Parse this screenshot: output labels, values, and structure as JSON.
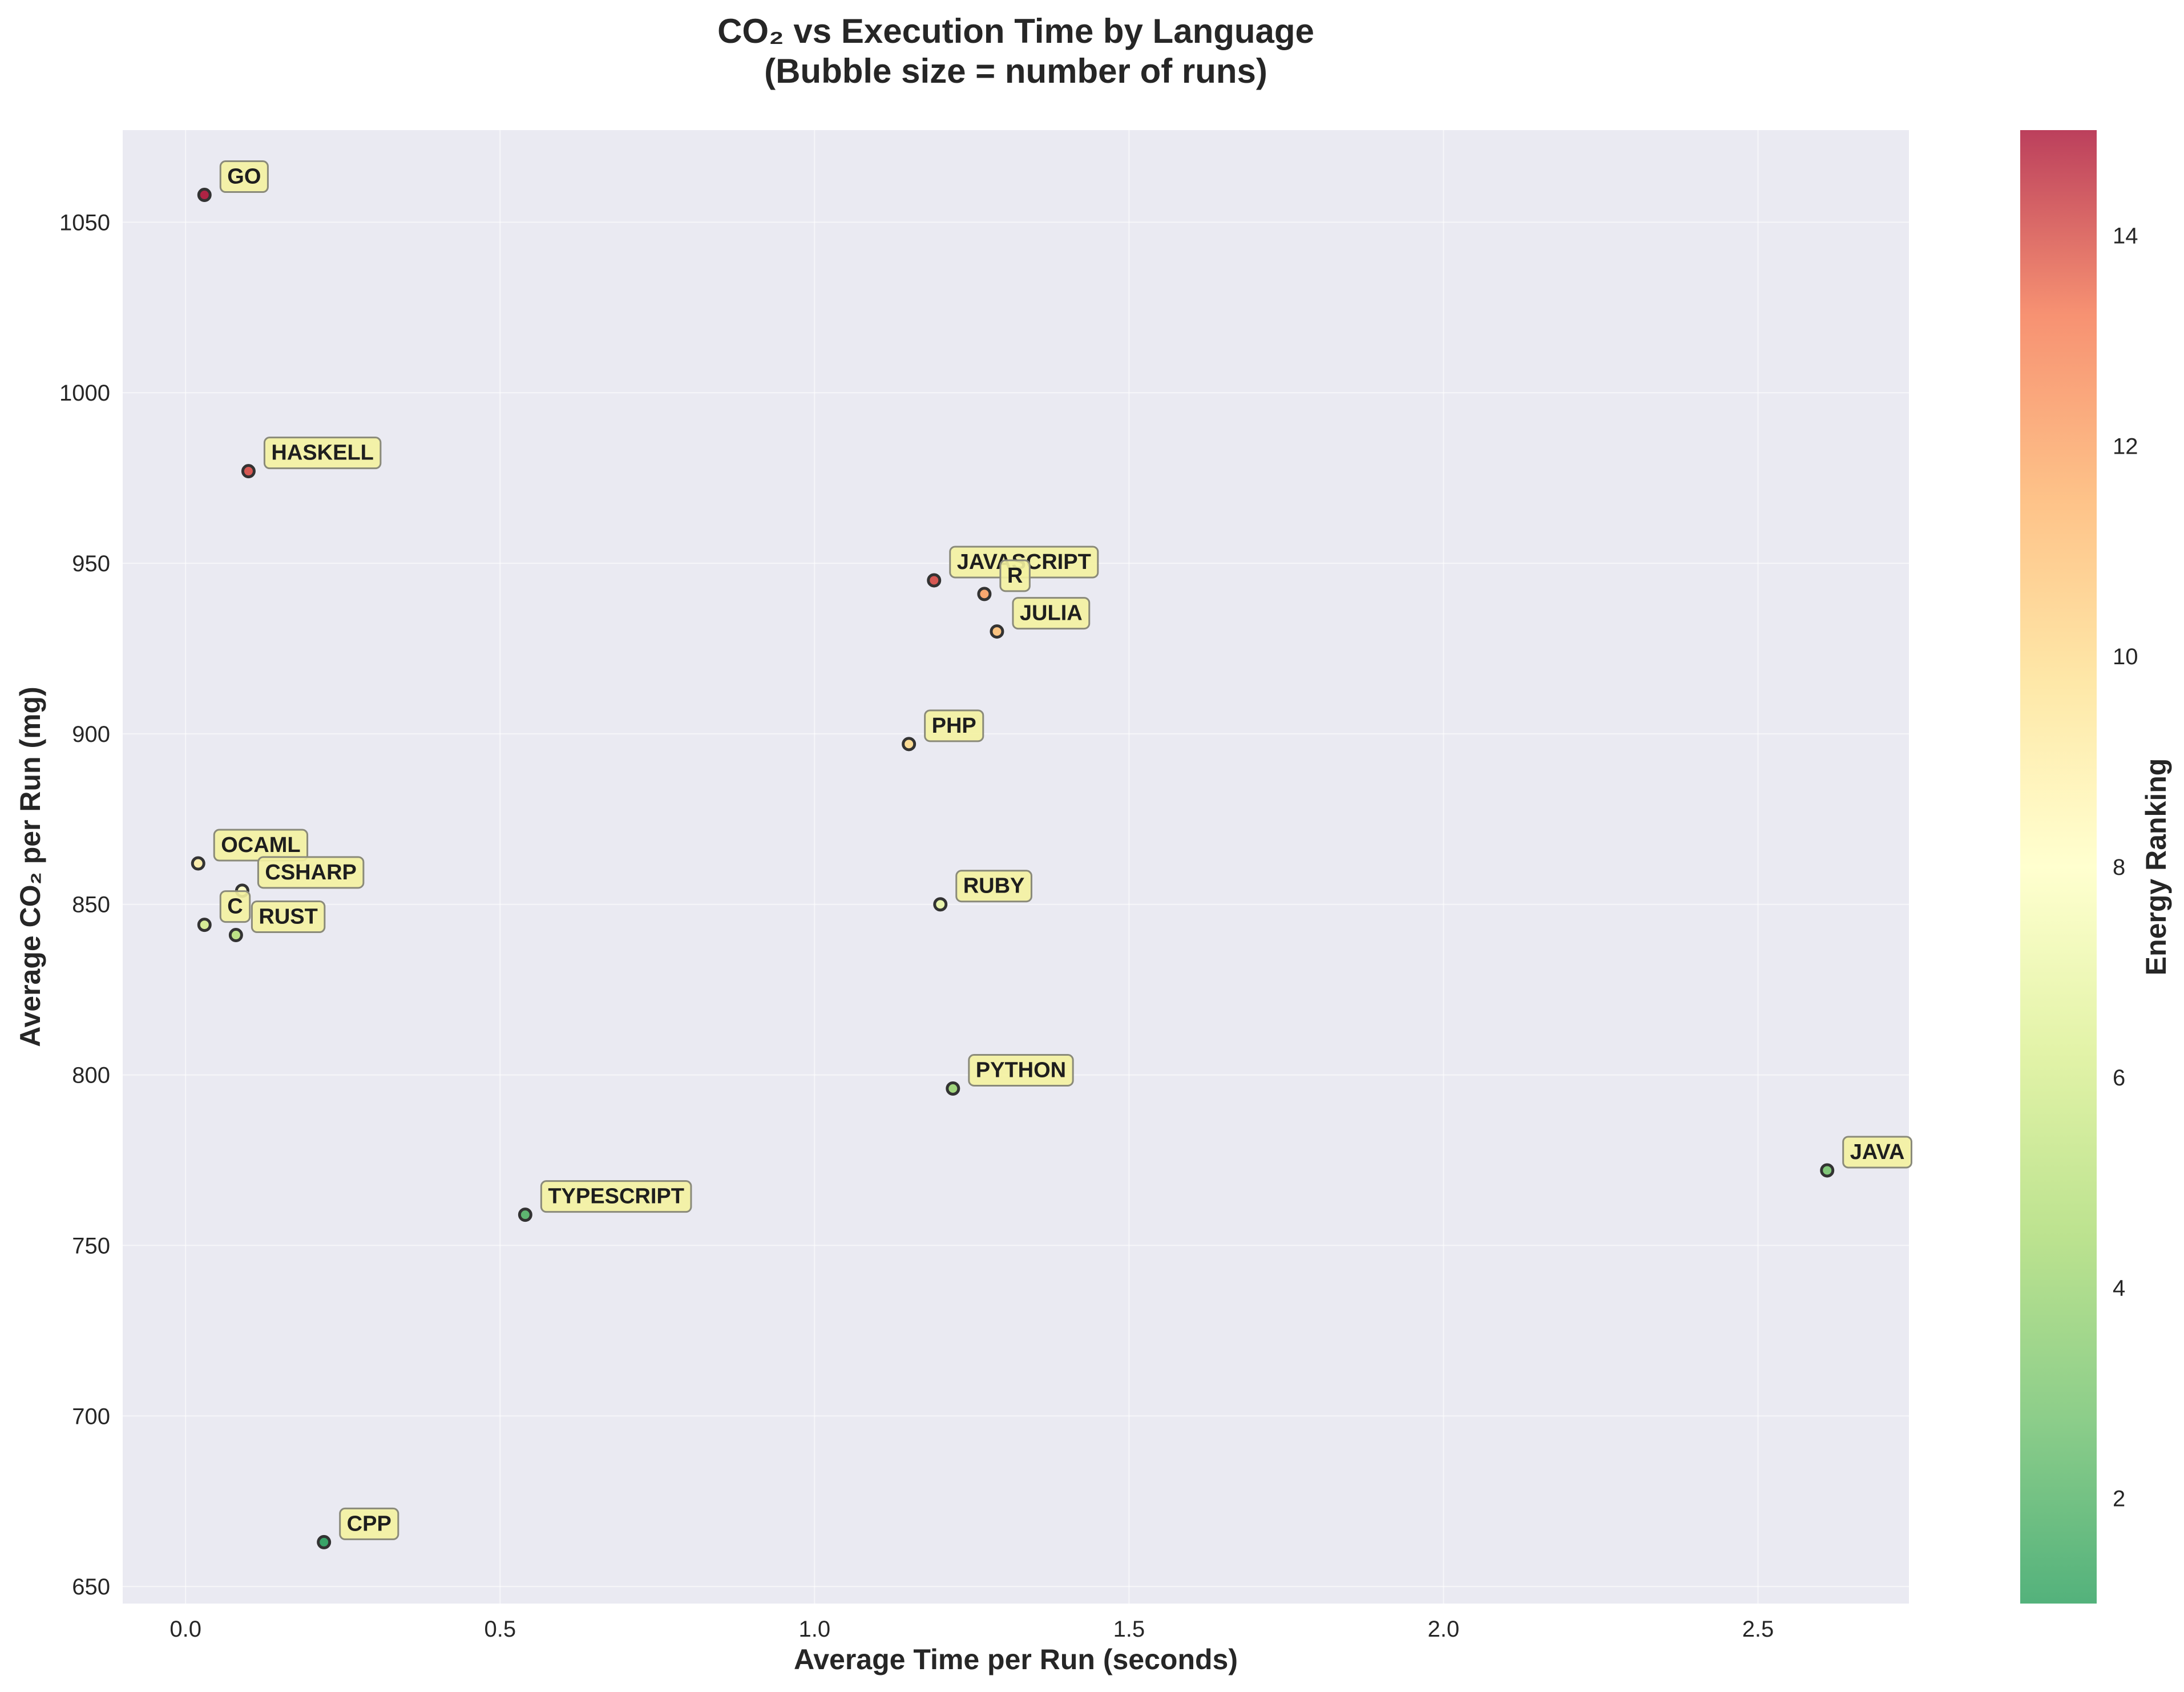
{
  "chart_data": {
    "type": "scatter",
    "title_line1": "CO₂ vs Execution Time by Language",
    "title_line2": "(Bubble size = number of runs)",
    "xlabel": "Average Time per Run (seconds)",
    "ylabel": "Average CO₂ per Run (mg)",
    "colorbar_label": "Energy Ranking",
    "xlim": [
      -0.1,
      2.74
    ],
    "ylim": [
      645,
      1077
    ],
    "xticks": [
      0.0,
      0.5,
      1.0,
      1.5,
      2.0,
      2.5
    ],
    "xtick_labels": [
      "0.0",
      "0.5",
      "1.0",
      "1.5",
      "2.0",
      "2.5"
    ],
    "yticks": [
      650,
      700,
      750,
      800,
      850,
      900,
      950,
      1000,
      1050
    ],
    "ytick_labels": [
      "650",
      "700",
      "750",
      "800",
      "850",
      "900",
      "950",
      "1000",
      "1050"
    ],
    "color_range": [
      1,
      15
    ],
    "colorbar_ticks": [
      2,
      4,
      6,
      8,
      10,
      12,
      14
    ],
    "colorbar_tick_labels": [
      "2",
      "4",
      "6",
      "8",
      "10",
      "12",
      "14"
    ],
    "grid": true,
    "colors": {
      "background": "#eaeaf2",
      "label_box": "#f2f0a0",
      "colormap": [
        "#1a9850",
        "#66bd63",
        "#a6d96a",
        "#d9ef8b",
        "#fee08b",
        "#fdae61",
        "#f46d43",
        "#d73027",
        "#a50026"
      ]
    },
    "points": [
      {
        "label": "GO",
        "x": 0.03,
        "y": 1058,
        "rank": 15
      },
      {
        "label": "HASKELL",
        "x": 0.1,
        "y": 977,
        "rank": 14
      },
      {
        "label": "JAVASCRIPT",
        "x": 1.19,
        "y": 945,
        "rank": 14
      },
      {
        "label": "R",
        "x": 1.27,
        "y": 941,
        "rank": 12
      },
      {
        "label": "JULIA",
        "x": 1.29,
        "y": 930,
        "rank": 11
      },
      {
        "label": "PHP",
        "x": 1.15,
        "y": 897,
        "rank": 10
      },
      {
        "label": "OCAML",
        "x": 0.02,
        "y": 862,
        "rank": 9
      },
      {
        "label": "CSHARP",
        "x": 0.09,
        "y": 854,
        "rank": 8
      },
      {
        "label": "RUBY",
        "x": 1.2,
        "y": 850,
        "rank": 7
      },
      {
        "label": "C",
        "x": 0.03,
        "y": 844,
        "rank": 6
      },
      {
        "label": "RUST",
        "x": 0.08,
        "y": 841,
        "rank": 5
      },
      {
        "label": "PYTHON",
        "x": 1.22,
        "y": 796,
        "rank": 4
      },
      {
        "label": "JAVA",
        "x": 2.61,
        "y": 772,
        "rank": 3
      },
      {
        "label": "TYPESCRIPT",
        "x": 0.54,
        "y": 759,
        "rank": 2
      },
      {
        "label": "CPP",
        "x": 0.22,
        "y": 663,
        "rank": 1
      }
    ]
  }
}
